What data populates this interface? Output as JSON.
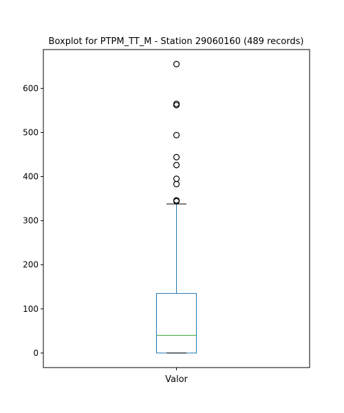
{
  "chart_data": {
    "type": "box",
    "title": "Boxplot for PTPM_TT_M - Station 29060160 (489 records)",
    "xlabel": "",
    "ylabel": "",
    "categories": [
      "Valor"
    ],
    "ylim": [
      -33,
      688
    ],
    "yticks": [
      0,
      100,
      200,
      300,
      400,
      500,
      600
    ],
    "grid": false,
    "box": {
      "whisker_low": 0,
      "q1": 0,
      "median": 40,
      "q3": 135,
      "whisker_high": 338
    },
    "outliers": [
      344,
      346,
      383,
      395,
      426,
      444,
      494,
      562,
      565,
      655
    ],
    "colors": {
      "box": "#1f77b4",
      "median": "#2ca02c",
      "cap": "#000000",
      "outlier": "#000000"
    }
  }
}
